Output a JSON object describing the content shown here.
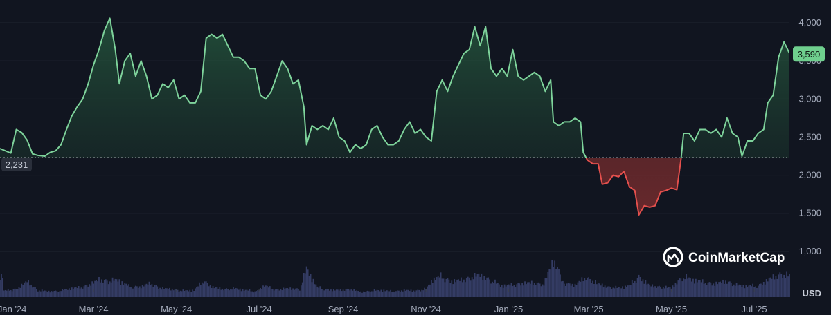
{
  "chart_data": {
    "type": "area",
    "currency": "USD",
    "baseline_label": "2,231",
    "baseline_value": 2231,
    "last_value_label": "3,590",
    "last_value": 3590,
    "ylim": [
      500,
      4300
    ],
    "y_ticks": [
      1000,
      1500,
      2000,
      2500,
      3000,
      3500,
      4000
    ],
    "y_tick_labels": [
      "1,000",
      "1,500",
      "2,000",
      "2,500",
      "3,000",
      "3,500",
      "4,000"
    ],
    "x_tick_labels": [
      "Jan '24",
      "Mar '24",
      "May '24",
      "Jul '24",
      "Sep '24",
      "Nov '24",
      "Jan '25",
      "Mar '25",
      "May '25",
      "Jul '25"
    ],
    "x_ticks": [
      "2024-01-01",
      "2024-03-01",
      "2024-05-01",
      "2024-07-01",
      "2024-09-01",
      "2024-11-01",
      "2025-01-01",
      "2025-03-01",
      "2025-05-01",
      "2025-07-01"
    ],
    "x_range": [
      "2023-12-23",
      "2025-07-27"
    ],
    "grid": true,
    "colors": {
      "above": "#7ed39b",
      "below": "#e5504d",
      "badge": "#6fcf8e"
    },
    "watermark": "CoinMarketCap",
    "series": [
      {
        "points": [
          [
            "2023-12-23",
            2350
          ],
          [
            "2023-12-27",
            2320
          ],
          [
            "2023-12-31",
            2290
          ],
          [
            "2024-01-04",
            2600
          ],
          [
            "2024-01-08",
            2560
          ],
          [
            "2024-01-12",
            2460
          ],
          [
            "2024-01-16",
            2280
          ],
          [
            "2024-01-20",
            2260
          ],
          [
            "2024-01-25",
            2250
          ],
          [
            "2024-01-29",
            2300
          ],
          [
            "2024-02-02",
            2320
          ],
          [
            "2024-02-06",
            2400
          ],
          [
            "2024-02-10",
            2600
          ],
          [
            "2024-02-14",
            2780
          ],
          [
            "2024-02-18",
            2900
          ],
          [
            "2024-02-22",
            3000
          ],
          [
            "2024-02-26",
            3200
          ],
          [
            "2024-03-01",
            3450
          ],
          [
            "2024-03-05",
            3650
          ],
          [
            "2024-03-09",
            3900
          ],
          [
            "2024-03-13",
            4060
          ],
          [
            "2024-03-17",
            3650
          ],
          [
            "2024-03-20",
            3200
          ],
          [
            "2024-03-24",
            3500
          ],
          [
            "2024-03-28",
            3600
          ],
          [
            "2024-04-01",
            3300
          ],
          [
            "2024-04-05",
            3500
          ],
          [
            "2024-04-09",
            3300
          ],
          [
            "2024-04-13",
            3000
          ],
          [
            "2024-04-17",
            3050
          ],
          [
            "2024-04-21",
            3200
          ],
          [
            "2024-04-25",
            3150
          ],
          [
            "2024-04-29",
            3250
          ],
          [
            "2024-05-03",
            3000
          ],
          [
            "2024-05-07",
            3050
          ],
          [
            "2024-05-11",
            2950
          ],
          [
            "2024-05-15",
            2950
          ],
          [
            "2024-05-19",
            3100
          ],
          [
            "2024-05-23",
            3800
          ],
          [
            "2024-05-27",
            3850
          ],
          [
            "2024-05-31",
            3800
          ],
          [
            "2024-06-04",
            3850
          ],
          [
            "2024-06-08",
            3700
          ],
          [
            "2024-06-12",
            3550
          ],
          [
            "2024-06-16",
            3550
          ],
          [
            "2024-06-20",
            3500
          ],
          [
            "2024-06-24",
            3400
          ],
          [
            "2024-06-28",
            3400
          ],
          [
            "2024-07-02",
            3050
          ],
          [
            "2024-07-06",
            3000
          ],
          [
            "2024-07-10",
            3100
          ],
          [
            "2024-07-14",
            3300
          ],
          [
            "2024-07-18",
            3500
          ],
          [
            "2024-07-22",
            3400
          ],
          [
            "2024-07-26",
            3200
          ],
          [
            "2024-07-30",
            3250
          ],
          [
            "2024-08-03",
            2900
          ],
          [
            "2024-08-05",
            2400
          ],
          [
            "2024-08-09",
            2650
          ],
          [
            "2024-08-13",
            2600
          ],
          [
            "2024-08-17",
            2650
          ],
          [
            "2024-08-21",
            2600
          ],
          [
            "2024-08-25",
            2750
          ],
          [
            "2024-08-29",
            2500
          ],
          [
            "2024-09-02",
            2450
          ],
          [
            "2024-09-06",
            2300
          ],
          [
            "2024-09-10",
            2400
          ],
          [
            "2024-09-14",
            2350
          ],
          [
            "2024-09-18",
            2400
          ],
          [
            "2024-09-22",
            2600
          ],
          [
            "2024-09-26",
            2650
          ],
          [
            "2024-09-30",
            2500
          ],
          [
            "2024-10-04",
            2400
          ],
          [
            "2024-10-08",
            2400
          ],
          [
            "2024-10-12",
            2450
          ],
          [
            "2024-10-16",
            2600
          ],
          [
            "2024-10-20",
            2700
          ],
          [
            "2024-10-24",
            2550
          ],
          [
            "2024-10-28",
            2600
          ],
          [
            "2024-11-01",
            2500
          ],
          [
            "2024-11-05",
            2450
          ],
          [
            "2024-11-09",
            3100
          ],
          [
            "2024-11-13",
            3250
          ],
          [
            "2024-11-17",
            3100
          ],
          [
            "2024-11-21",
            3300
          ],
          [
            "2024-11-25",
            3450
          ],
          [
            "2024-11-29",
            3600
          ],
          [
            "2024-12-03",
            3650
          ],
          [
            "2024-12-07",
            3950
          ],
          [
            "2024-12-11",
            3700
          ],
          [
            "2024-12-15",
            3950
          ],
          [
            "2024-12-19",
            3400
          ],
          [
            "2024-12-23",
            3300
          ],
          [
            "2024-12-27",
            3400
          ],
          [
            "2024-12-31",
            3300
          ],
          [
            "2025-01-04",
            3650
          ],
          [
            "2025-01-08",
            3300
          ],
          [
            "2025-01-12",
            3250
          ],
          [
            "2025-01-16",
            3300
          ],
          [
            "2025-01-20",
            3350
          ],
          [
            "2025-01-24",
            3300
          ],
          [
            "2025-01-28",
            3100
          ],
          [
            "2025-02-01",
            3250
          ],
          [
            "2025-02-03",
            2700
          ],
          [
            "2025-02-07",
            2650
          ],
          [
            "2025-02-11",
            2700
          ],
          [
            "2025-02-15",
            2700
          ],
          [
            "2025-02-19",
            2750
          ],
          [
            "2025-02-23",
            2700
          ],
          [
            "2025-02-25",
            2300
          ],
          [
            "2025-02-28",
            2200
          ],
          [
            "2025-03-04",
            2150
          ],
          [
            "2025-03-08",
            2150
          ],
          [
            "2025-03-11",
            1880
          ],
          [
            "2025-03-15",
            1900
          ],
          [
            "2025-03-19",
            2000
          ],
          [
            "2025-03-23",
            1980
          ],
          [
            "2025-03-27",
            2050
          ],
          [
            "2025-03-31",
            1850
          ],
          [
            "2025-04-04",
            1800
          ],
          [
            "2025-04-07",
            1480
          ],
          [
            "2025-04-11",
            1600
          ],
          [
            "2025-04-15",
            1580
          ],
          [
            "2025-04-19",
            1600
          ],
          [
            "2025-04-23",
            1780
          ],
          [
            "2025-04-27",
            1800
          ],
          [
            "2025-05-01",
            1830
          ],
          [
            "2025-05-05",
            1810
          ],
          [
            "2025-05-08",
            2200
          ],
          [
            "2025-05-10",
            2550
          ],
          [
            "2025-05-14",
            2550
          ],
          [
            "2025-05-18",
            2450
          ],
          [
            "2025-05-22",
            2600
          ],
          [
            "2025-05-26",
            2600
          ],
          [
            "2025-05-30",
            2550
          ],
          [
            "2025-06-03",
            2600
          ],
          [
            "2025-06-07",
            2500
          ],
          [
            "2025-06-11",
            2750
          ],
          [
            "2025-06-15",
            2550
          ],
          [
            "2025-06-19",
            2500
          ],
          [
            "2025-06-22",
            2250
          ],
          [
            "2025-06-26",
            2450
          ],
          [
            "2025-06-30",
            2450
          ],
          [
            "2025-07-04",
            2550
          ],
          [
            "2025-07-08",
            2600
          ],
          [
            "2025-07-11",
            2950
          ],
          [
            "2025-07-15",
            3050
          ],
          [
            "2025-07-19",
            3550
          ],
          [
            "2025-07-23",
            3750
          ],
          [
            "2025-07-27",
            3600
          ]
        ]
      }
    ],
    "volume": [
      [
        "2023-12-26",
        0.22
      ],
      [
        "2024-01-04",
        0.28
      ],
      [
        "2024-01-12",
        0.55
      ],
      [
        "2024-01-20",
        0.24
      ],
      [
        "2024-01-28",
        0.2
      ],
      [
        "2024-02-05",
        0.22
      ],
      [
        "2024-02-13",
        0.3
      ],
      [
        "2024-02-21",
        0.34
      ],
      [
        "2024-03-01",
        0.5
      ],
      [
        "2024-03-05",
        0.62
      ],
      [
        "2024-03-12",
        0.56
      ],
      [
        "2024-03-19",
        0.6
      ],
      [
        "2024-03-27",
        0.38
      ],
      [
        "2024-04-04",
        0.36
      ],
      [
        "2024-04-12",
        0.48
      ],
      [
        "2024-04-20",
        0.3
      ],
      [
        "2024-04-28",
        0.28
      ],
      [
        "2024-05-06",
        0.22
      ],
      [
        "2024-05-14",
        0.24
      ],
      [
        "2024-05-21",
        0.58
      ],
      [
        "2024-05-28",
        0.34
      ],
      [
        "2024-06-05",
        0.28
      ],
      [
        "2024-06-13",
        0.3
      ],
      [
        "2024-06-21",
        0.24
      ],
      [
        "2024-06-29",
        0.2
      ],
      [
        "2024-07-05",
        0.4
      ],
      [
        "2024-07-13",
        0.26
      ],
      [
        "2024-07-23",
        0.3
      ],
      [
        "2024-07-31",
        0.28
      ],
      [
        "2024-08-05",
        1.0
      ],
      [
        "2024-08-13",
        0.34
      ],
      [
        "2024-08-21",
        0.26
      ],
      [
        "2024-08-29",
        0.24
      ],
      [
        "2024-09-06",
        0.28
      ],
      [
        "2024-09-14",
        0.18
      ],
      [
        "2024-09-22",
        0.22
      ],
      [
        "2024-09-30",
        0.24
      ],
      [
        "2024-10-08",
        0.2
      ],
      [
        "2024-10-16",
        0.24
      ],
      [
        "2024-10-24",
        0.22
      ],
      [
        "2024-11-01",
        0.28
      ],
      [
        "2024-11-06",
        0.62
      ],
      [
        "2024-11-12",
        0.72
      ],
      [
        "2024-11-20",
        0.55
      ],
      [
        "2024-11-28",
        0.6
      ],
      [
        "2024-12-05",
        0.7
      ],
      [
        "2024-12-10",
        0.78
      ],
      [
        "2024-12-18",
        0.62
      ],
      [
        "2024-12-26",
        0.4
      ],
      [
        "2025-01-03",
        0.42
      ],
      [
        "2025-01-11",
        0.48
      ],
      [
        "2025-01-19",
        0.5
      ],
      [
        "2025-01-27",
        0.45
      ],
      [
        "2025-02-03",
        1.3
      ],
      [
        "2025-02-11",
        0.5
      ],
      [
        "2025-02-19",
        0.42
      ],
      [
        "2025-02-27",
        0.7
      ],
      [
        "2025-03-07",
        0.48
      ],
      [
        "2025-03-15",
        0.36
      ],
      [
        "2025-03-23",
        0.32
      ],
      [
        "2025-03-31",
        0.4
      ],
      [
        "2025-04-07",
        0.72
      ],
      [
        "2025-04-15",
        0.4
      ],
      [
        "2025-04-23",
        0.36
      ],
      [
        "2025-05-01",
        0.32
      ],
      [
        "2025-05-09",
        0.7
      ],
      [
        "2025-05-17",
        0.6
      ],
      [
        "2025-05-25",
        0.52
      ],
      [
        "2025-06-02",
        0.46
      ],
      [
        "2025-06-10",
        0.56
      ],
      [
        "2025-06-18",
        0.42
      ],
      [
        "2025-06-26",
        0.38
      ],
      [
        "2025-07-04",
        0.4
      ],
      [
        "2025-07-12",
        0.62
      ],
      [
        "2025-07-20",
        0.8
      ],
      [
        "2025-07-27",
        0.75
      ]
    ]
  }
}
